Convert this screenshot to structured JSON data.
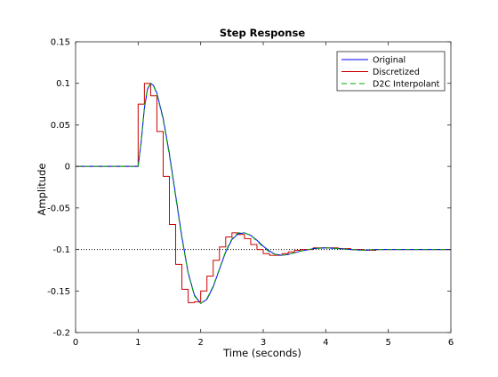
{
  "chart_data": {
    "type": "line",
    "title": "Step Response",
    "xlabel": "Time (seconds)",
    "ylabel": "Amplitude",
    "xlim": [
      0,
      6
    ],
    "ylim": [
      -0.2,
      0.15
    ],
    "xticks": [
      0,
      1,
      2,
      3,
      4,
      5,
      6
    ],
    "xtick_labels": [
      "0",
      "1",
      "2",
      "3",
      "4",
      "5",
      "6"
    ],
    "yticks": [
      0.15,
      0.1,
      0.05,
      0,
      -0.05,
      -0.1,
      -0.15,
      -0.2
    ],
    "ytick_labels": [
      "0.15",
      "0.1",
      "0.05",
      "0",
      "-0.05",
      "-0.1",
      "-0.15",
      "-0.2"
    ],
    "grid": false,
    "legend_position": "top-right",
    "reference_line": {
      "y": -0.1,
      "style": "dotted",
      "color": "#000000"
    },
    "series": [
      {
        "name": "Original",
        "color": "#0000ff",
        "style": "solid",
        "x": [
          0,
          1.0,
          1.05,
          1.1,
          1.15,
          1.2,
          1.25,
          1.3,
          1.4,
          1.5,
          1.6,
          1.7,
          1.8,
          1.9,
          2.0,
          2.1,
          2.2,
          2.3,
          2.4,
          2.5,
          2.6,
          2.7,
          2.8,
          2.9,
          3.0,
          3.1,
          3.2,
          3.3,
          3.4,
          3.5,
          3.6,
          3.8,
          4.0,
          4.2,
          4.4,
          4.6,
          4.8,
          5.0,
          5.2,
          5.5,
          6.0
        ],
        "y": [
          0,
          0,
          0.03,
          0.07,
          0.093,
          0.1,
          0.097,
          0.088,
          0.058,
          0.015,
          -0.035,
          -0.085,
          -0.128,
          -0.155,
          -0.165,
          -0.16,
          -0.145,
          -0.124,
          -0.103,
          -0.088,
          -0.081,
          -0.08,
          -0.083,
          -0.089,
          -0.096,
          -0.102,
          -0.106,
          -0.107,
          -0.106,
          -0.104,
          -0.102,
          -0.099,
          -0.098,
          -0.099,
          -0.1,
          -0.101,
          -0.1,
          -0.1,
          -0.1,
          -0.1,
          -0.1
        ]
      },
      {
        "name": "Discretized",
        "color": "#cc0000",
        "style": "steps",
        "x": [
          0,
          1.0,
          1.1,
          1.2,
          1.3,
          1.4,
          1.5,
          1.6,
          1.7,
          1.8,
          1.9,
          2.0,
          2.1,
          2.2,
          2.3,
          2.4,
          2.5,
          2.6,
          2.7,
          2.8,
          2.9,
          3.0,
          3.1,
          3.2,
          3.3,
          3.4,
          3.5,
          3.6,
          3.8,
          4.0,
          4.2,
          4.4,
          4.6,
          4.8,
          5.0,
          5.2,
          5.5,
          6.0
        ],
        "y": [
          0,
          0.075,
          0.1,
          0.085,
          0.042,
          -0.012,
          -0.07,
          -0.118,
          -0.148,
          -0.164,
          -0.163,
          -0.15,
          -0.132,
          -0.113,
          -0.097,
          -0.085,
          -0.08,
          -0.082,
          -0.087,
          -0.094,
          -0.1,
          -0.105,
          -0.107,
          -0.107,
          -0.105,
          -0.103,
          -0.101,
          -0.1,
          -0.098,
          -0.098,
          -0.099,
          -0.1,
          -0.101,
          -0.1,
          -0.1,
          -0.1,
          -0.1,
          -0.1
        ]
      },
      {
        "name": "D2C Interpolant",
        "color": "#00aa00",
        "style": "dashed",
        "x": [
          0,
          1.0,
          1.05,
          1.1,
          1.15,
          1.2,
          1.25,
          1.3,
          1.4,
          1.5,
          1.6,
          1.7,
          1.8,
          1.9,
          2.0,
          2.1,
          2.2,
          2.3,
          2.4,
          2.5,
          2.6,
          2.7,
          2.8,
          2.9,
          3.0,
          3.1,
          3.2,
          3.3,
          3.4,
          3.5,
          3.6,
          3.8,
          4.0,
          4.2,
          4.4,
          4.6,
          4.8,
          5.0,
          5.2,
          5.5,
          6.0
        ],
        "y": [
          0,
          0,
          0.032,
          0.072,
          0.094,
          0.1,
          0.096,
          0.087,
          0.056,
          0.013,
          -0.037,
          -0.087,
          -0.129,
          -0.156,
          -0.165,
          -0.159,
          -0.144,
          -0.123,
          -0.102,
          -0.087,
          -0.08,
          -0.08,
          -0.083,
          -0.09,
          -0.097,
          -0.103,
          -0.106,
          -0.107,
          -0.106,
          -0.104,
          -0.102,
          -0.099,
          -0.098,
          -0.099,
          -0.1,
          -0.101,
          -0.1,
          -0.1,
          -0.1,
          -0.1,
          -0.1
        ]
      }
    ]
  }
}
